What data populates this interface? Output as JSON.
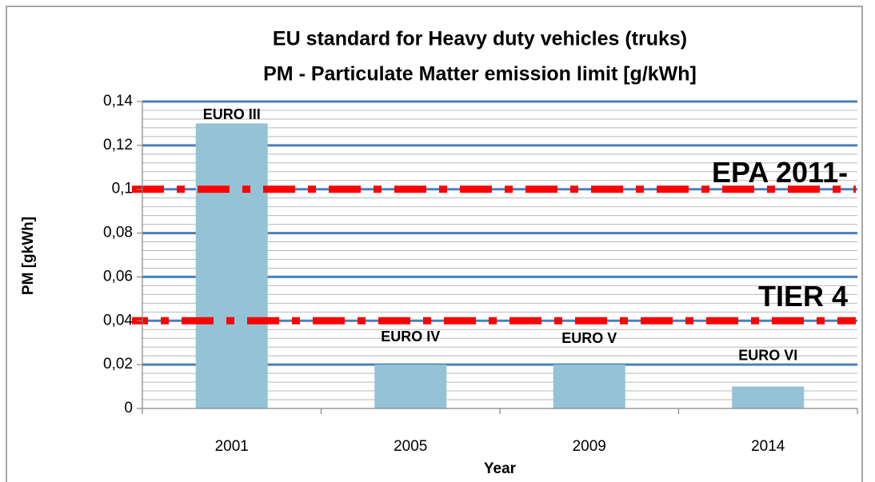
{
  "chart_data": {
    "type": "bar",
    "title": [
      "EU  standard for Heavy duty vehicles (truks)",
      "PM - Particulate Matter emission limit [g/kWh]"
    ],
    "x_label": "Year",
    "y_label": "PM [gkWh]",
    "categories": [
      "2001",
      "2005",
      "2009",
      "2014"
    ],
    "values": [
      0.13,
      0.02,
      0.02,
      0.01
    ],
    "bar_labels": [
      "EURO III",
      "EURO IV",
      "EURO V",
      "EURO VI"
    ],
    "color": "#93c3d5",
    "ylim": [
      0,
      0.14
    ],
    "yticks": [
      0,
      {
        "value": 0.02,
        "label": "0,02"
      },
      {
        "value": 0.04,
        "label": "0,04"
      },
      {
        "value": 0.06,
        "label": "0,06"
      },
      {
        "value": 0.08,
        "label": "0,08"
      },
      {
        "value": 0.1,
        "label": "0,1"
      },
      {
        "value": 0.12,
        "label": "0,12"
      },
      {
        "value": 0.14,
        "label": "0,14"
      }
    ],
    "minor_yticks": [
      0.004,
      0.008,
      0.012,
      0.016,
      0.024,
      0.028,
      0.032,
      0.036,
      0.044,
      0.048,
      0.052,
      0.056,
      0.064,
      0.068,
      0.072,
      0.076,
      0.084,
      0.088,
      0.092,
      0.096,
      0.104,
      0.108,
      0.112,
      0.116,
      0.124,
      0.128,
      0.132,
      0.136
    ],
    "grid": true,
    "reference_lines": [
      {
        "name": "EPA 2011-",
        "value": 0.1,
        "color": "#ff0000"
      },
      {
        "name": "TIER 4",
        "value": 0.04,
        "color": "#ff0000"
      }
    ]
  }
}
